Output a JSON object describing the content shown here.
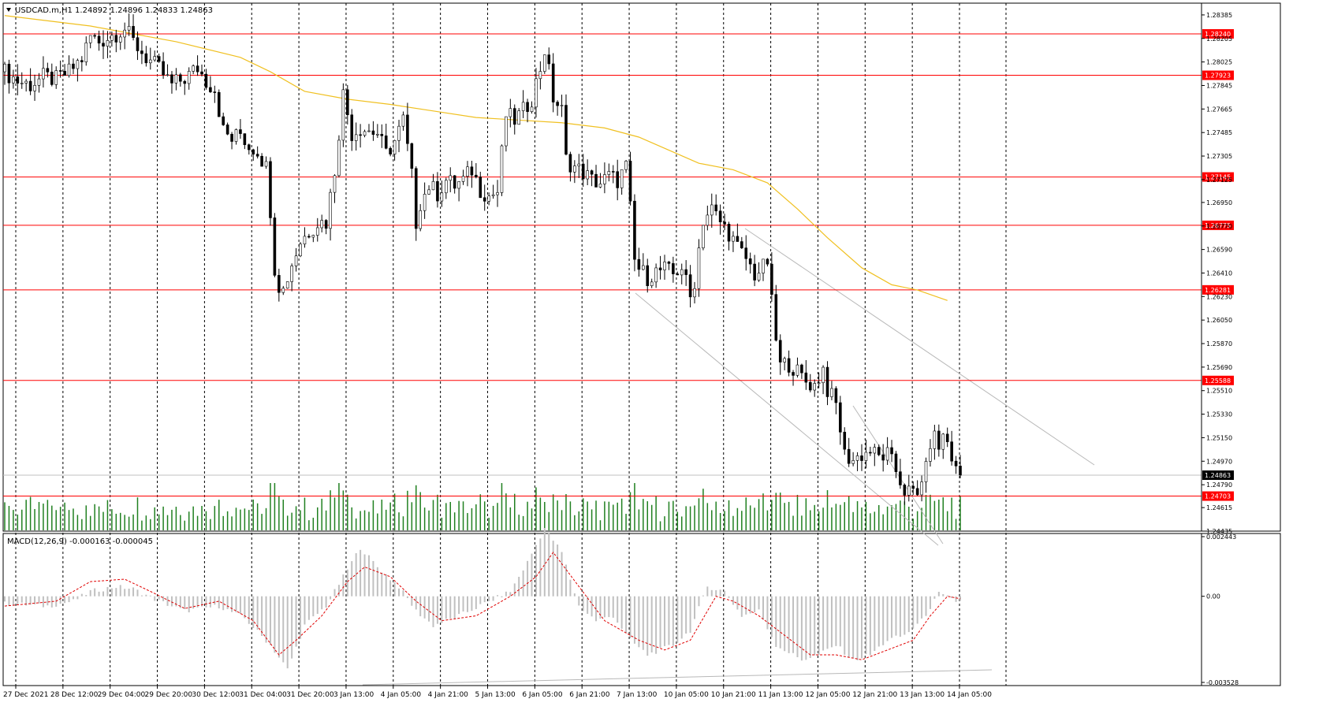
{
  "header": {
    "symbol_line": "USDCAD.m,H1  1.24892 1.24896 1.24833 1.24863",
    "macd_line": "MACD(12,26,9) -0.000163 -0.000045"
  },
  "chart_data": [
    {
      "type": "candlestick",
      "symbol": "USDCAD.m",
      "timeframe": "H1",
      "ohlc_header": {
        "open": 1.24892,
        "high": 1.24896,
        "low": 1.24833,
        "close": 1.24863
      },
      "ylim": [
        1.24435,
        1.28475
      ],
      "y_tick_labels": [
        "1.28385",
        "1.28205",
        "1.28025",
        "1.27845",
        "1.27665",
        "1.27485",
        "1.27305",
        "1.27125",
        "1.26950",
        "1.26770",
        "1.26590",
        "1.26410",
        "1.26230",
        "1.26050",
        "1.25870",
        "1.25690",
        "1.25510",
        "1.25330",
        "1.25150",
        "1.24970",
        "1.24790",
        "1.24615",
        "1.24435"
      ],
      "x_tick_labels": [
        "27 Dec 2021",
        "28 Dec 12:00",
        "29 Dec 04:00",
        "29 Dec 20:00",
        "30 Dec 12:00",
        "31 Dec 04:00",
        "31 Dec 20:00",
        "3 Jan 13:00",
        "4 Jan 05:00",
        "4 Jan 21:00",
        "5 Jan 13:00",
        "6 Jan 05:00",
        "6 Jan 21:00",
        "7 Jan 13:00",
        "10 Jan 05:00",
        "10 Jan 21:00",
        "11 Jan 13:00",
        "12 Jan 05:00",
        "12 Jan 21:00",
        "13 Jan 13:00",
        "14 Jan 05:00"
      ],
      "horizontal_levels": [
        {
          "value": 1.2824,
          "label": "1.28240"
        },
        {
          "value": 1.27923,
          "label": "1.27923"
        },
        {
          "value": 1.27145,
          "label": "1.27145"
        },
        {
          "value": 1.26775,
          "label": "1.26775"
        },
        {
          "value": 1.26281,
          "label": "1.26281"
        },
        {
          "value": 1.25588,
          "label": "1.25588"
        },
        {
          "value": 1.24703,
          "label": "1.24703"
        }
      ],
      "current_price": {
        "value": 1.24863,
        "label": "1.24863"
      },
      "close_path": [
        [
          0,
          1.2795
        ],
        [
          3,
          1.2788
        ],
        [
          6,
          1.2785
        ],
        [
          9,
          1.2791
        ],
        [
          12,
          1.2789
        ],
        [
          15,
          1.2795
        ],
        [
          18,
          1.2805
        ],
        [
          20,
          1.2822
        ],
        [
          22,
          1.2818
        ],
        [
          25,
          1.2823
        ],
        [
          28,
          1.2828
        ],
        [
          30,
          1.2818
        ],
        [
          33,
          1.2806
        ],
        [
          36,
          1.2797
        ],
        [
          39,
          1.2785
        ],
        [
          42,
          1.279
        ],
        [
          45,
          1.2798
        ],
        [
          47,
          1.2788
        ],
        [
          49,
          1.2782
        ],
        [
          51,
          1.275
        ],
        [
          53,
          1.2743
        ],
        [
          55,
          1.2748
        ],
        [
          57,
          1.2738
        ],
        [
          59,
          1.2735
        ],
        [
          61,
          1.2722
        ],
        [
          62,
          1.269
        ],
        [
          63,
          1.2645
        ],
        [
          64,
          1.2632
        ],
        [
          65,
          1.2628
        ],
        [
          67,
          1.2648
        ],
        [
          69,
          1.2665
        ],
        [
          71,
          1.2673
        ],
        [
          73,
          1.268
        ],
        [
          75,
          1.268
        ],
        [
          77,
          1.272
        ],
        [
          79,
          1.2778
        ],
        [
          81,
          1.2748
        ],
        [
          83,
          1.2752
        ],
        [
          85,
          1.275
        ],
        [
          87,
          1.2748
        ],
        [
          89,
          1.2732
        ],
        [
          91,
          1.2742
        ],
        [
          93,
          1.2758
        ],
        [
          95,
          1.2715
        ],
        [
          96,
          1.268
        ],
        [
          97,
          1.2695
        ],
        [
          99,
          1.2708
        ],
        [
          101,
          1.2702
        ],
        [
          103,
          1.2712
        ],
        [
          105,
          1.2708
        ],
        [
          107,
          1.2712
        ],
        [
          109,
          1.272
        ],
        [
          111,
          1.2705
        ],
        [
          113,
          1.27
        ],
        [
          115,
          1.2703
        ],
        [
          117,
          1.2762
        ],
        [
          119,
          1.2758
        ],
        [
          121,
          1.2765
        ],
        [
          123,
          1.2775
        ],
        [
          125,
          1.2798
        ],
        [
          126,
          1.2812
        ],
        [
          127,
          1.2795
        ],
        [
          128,
          1.2775
        ],
        [
          130,
          1.2765
        ],
        [
          131,
          1.2728
        ],
        [
          133,
          1.2722
        ],
        [
          135,
          1.2718
        ],
        [
          137,
          1.2712
        ],
        [
          139,
          1.271
        ],
        [
          141,
          1.2715
        ],
        [
          143,
          1.2712
        ],
        [
          145,
          1.2722
        ],
        [
          146,
          1.269
        ],
        [
          147,
          1.265
        ],
        [
          148,
          1.2644
        ],
        [
          150,
          1.2638
        ],
        [
          152,
          1.2642
        ],
        [
          154,
          1.2644
        ],
        [
          156,
          1.264
        ],
        [
          158,
          1.2646
        ],
        [
          160,
          1.2622
        ],
        [
          161,
          1.2635
        ],
        [
          162,
          1.266
        ],
        [
          163,
          1.2682
        ],
        [
          165,
          1.269
        ],
        [
          167,
          1.268
        ],
        [
          169,
          1.2672
        ],
        [
          171,
          1.266
        ],
        [
          173,
          1.2652
        ],
        [
          175,
          1.264
        ],
        [
          177,
          1.2645
        ],
        [
          178,
          1.265
        ],
        [
          179,
          1.2618
        ],
        [
          180,
          1.259
        ],
        [
          181,
          1.257
        ],
        [
          183,
          1.2572
        ],
        [
          185,
          1.2565
        ],
        [
          187,
          1.2558
        ],
        [
          189,
          1.2555
        ],
        [
          191,
          1.2568
        ],
        [
          192,
          1.2552
        ],
        [
          194,
          1.254
        ],
        [
          195,
          1.2522
        ],
        [
          196,
          1.2502
        ],
        [
          198,
          1.2498
        ],
        [
          200,
          1.2502
        ],
        [
          202,
          1.2505
        ],
        [
          204,
          1.25
        ],
        [
          206,
          1.2502
        ],
        [
          208,
          1.249
        ],
        [
          209,
          1.2482
        ],
        [
          210,
          1.2475
        ],
        [
          212,
          1.2472
        ],
        [
          213,
          1.247
        ],
        [
          214,
          1.2485
        ],
        [
          215,
          1.249
        ],
        [
          216,
          1.2512
        ],
        [
          217,
          1.2515
        ],
        [
          218,
          1.2508
        ],
        [
          219,
          1.2516
        ],
        [
          220,
          1.2512
        ],
        [
          221,
          1.25
        ],
        [
          222,
          1.249
        ],
        [
          223,
          1.2486
        ]
      ],
      "volume_color": "#208020",
      "moving_average": {
        "color": "#f0c020",
        "points": [
          [
            0,
            1.2838
          ],
          [
            20,
            1.283
          ],
          [
            40,
            1.2818
          ],
          [
            55,
            1.2806
          ],
          [
            62,
            1.2795
          ],
          [
            70,
            1.278
          ],
          [
            80,
            1.2774
          ],
          [
            90,
            1.277
          ],
          [
            100,
            1.2765
          ],
          [
            110,
            1.276
          ],
          [
            120,
            1.2758
          ],
          [
            130,
            1.2756
          ],
          [
            140,
            1.2752
          ],
          [
            148,
            1.2745
          ],
          [
            155,
            1.2735
          ],
          [
            162,
            1.2725
          ],
          [
            170,
            1.272
          ],
          [
            178,
            1.271
          ],
          [
            185,
            1.269
          ],
          [
            192,
            1.2668
          ],
          [
            200,
            1.2645
          ],
          [
            207,
            1.2632
          ],
          [
            213,
            1.2628
          ],
          [
            220,
            1.262
          ]
        ]
      }
    },
    {
      "type": "macd",
      "title": "MACD(12,26,9) -0.000163 -0.000045",
      "ylim": [
        -0.003528,
        0.002443
      ],
      "y_tick_labels": [
        "0.002443",
        "0.00",
        "-0.003528"
      ],
      "histogram_color": "#c0c0c0",
      "signal_color": "#e00000",
      "histogram": [
        [
          0,
          -0.0003
        ],
        [
          10,
          -0.0004
        ],
        [
          16,
          -0.0002
        ],
        [
          20,
          0.0002
        ],
        [
          26,
          0.0004
        ],
        [
          30,
          0.0003
        ],
        [
          36,
          -0.0002
        ],
        [
          42,
          -0.0006
        ],
        [
          50,
          -0.0004
        ],
        [
          56,
          -0.0009
        ],
        [
          62,
          -0.002
        ],
        [
          66,
          -0.003
        ],
        [
          70,
          -0.0012
        ],
        [
          75,
          -0.0004
        ],
        [
          79,
          0.0008
        ],
        [
          83,
          0.002
        ],
        [
          87,
          0.0012
        ],
        [
          92,
          0.0004
        ],
        [
          96,
          -0.0006
        ],
        [
          100,
          -0.0012
        ],
        [
          106,
          -0.0008
        ],
        [
          112,
          -0.0003
        ],
        [
          118,
          0.0002
        ],
        [
          122,
          0.0014
        ],
        [
          126,
          0.0028
        ],
        [
          130,
          0.0018
        ],
        [
          134,
          -0.0004
        ],
        [
          138,
          -0.001
        ],
        [
          142,
          -0.0008
        ],
        [
          146,
          -0.0018
        ],
        [
          150,
          -0.0024
        ],
        [
          156,
          -0.002
        ],
        [
          160,
          -0.0014
        ],
        [
          164,
          0.0004
        ],
        [
          168,
          0.0002
        ],
        [
          172,
          -0.0008
        ],
        [
          176,
          -0.0006
        ],
        [
          180,
          -0.002
        ],
        [
          186,
          -0.0026
        ],
        [
          190,
          -0.0024
        ],
        [
          194,
          -0.002
        ],
        [
          198,
          -0.0026
        ],
        [
          202,
          -0.0024
        ],
        [
          206,
          -0.0018
        ],
        [
          210,
          -0.0016
        ],
        [
          214,
          -0.001
        ],
        [
          218,
          0.0001
        ],
        [
          222,
          -0.0002
        ]
      ],
      "signal": [
        [
          0,
          -0.0004
        ],
        [
          12,
          -0.0002
        ],
        [
          20,
          0.0006
        ],
        [
          28,
          0.0007
        ],
        [
          34,
          0.0002
        ],
        [
          42,
          -0.0005
        ],
        [
          50,
          -0.0002
        ],
        [
          58,
          -0.001
        ],
        [
          64,
          -0.0024
        ],
        [
          68,
          -0.0018
        ],
        [
          74,
          -0.0008
        ],
        [
          80,
          0.0006
        ],
        [
          84,
          0.0012
        ],
        [
          90,
          0.0008
        ],
        [
          96,
          -0.0002
        ],
        [
          102,
          -0.001
        ],
        [
          110,
          -0.0008
        ],
        [
          118,
          0.0
        ],
        [
          124,
          0.0008
        ],
        [
          128,
          0.0018
        ],
        [
          134,
          0.0004
        ],
        [
          140,
          -0.001
        ],
        [
          148,
          -0.0018
        ],
        [
          154,
          -0.0022
        ],
        [
          160,
          -0.0018
        ],
        [
          166,
          0.0
        ],
        [
          170,
          -0.0002
        ],
        [
          176,
          -0.0008
        ],
        [
          182,
          -0.0016
        ],
        [
          188,
          -0.0024
        ],
        [
          194,
          -0.0024
        ],
        [
          200,
          -0.0026
        ],
        [
          206,
          -0.0022
        ],
        [
          212,
          -0.0018
        ],
        [
          216,
          -0.0008
        ],
        [
          220,
          0.0
        ],
        [
          223,
          -0.0001
        ]
      ]
    }
  ]
}
